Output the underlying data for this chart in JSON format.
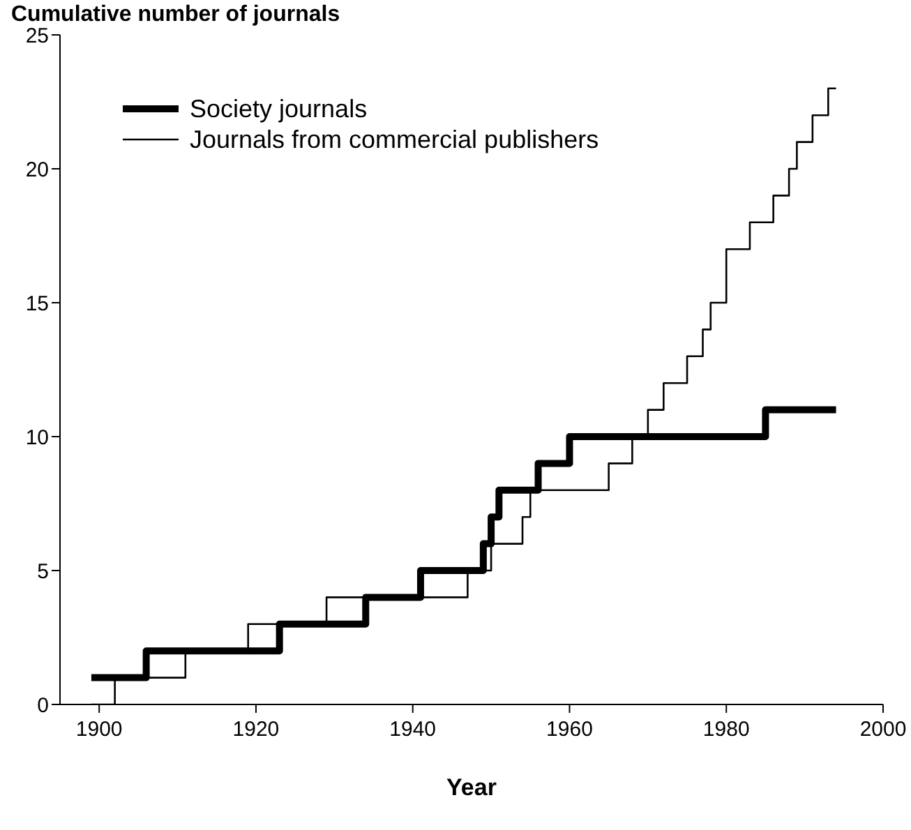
{
  "chart_data": {
    "type": "step",
    "title": "Cumulative number of journals",
    "xlabel": "Year",
    "xlim": [
      1895,
      2000
    ],
    "xticks": [
      1900,
      1920,
      1940,
      1960,
      1980,
      2000
    ],
    "ylim": [
      0,
      25
    ],
    "yticks": [
      0,
      5,
      10,
      15,
      20,
      25
    ],
    "grid": false,
    "legend": "top left",
    "marker": "none",
    "line_style": "solid",
    "series": [
      {
        "name": "Society journals",
        "color": "#000000",
        "x": [
          1899,
          1906,
          1923,
          1934,
          1941,
          1949,
          1950,
          1951,
          1956,
          1960,
          1985,
          1994
        ],
        "values": [
          1,
          2,
          3,
          4,
          5,
          6,
          7,
          8,
          9,
          10,
          11,
          11
        ]
      },
      {
        "name": "Journals from commercial  publishers",
        "color": "#000000",
        "x": [
          1899,
          1902,
          1911,
          1919,
          1929,
          1947,
          1950,
          1954,
          1955,
          1965,
          1968,
          1970,
          1972,
          1975,
          1977,
          1978,
          1980,
          1980,
          1983,
          1986,
          1988,
          1989,
          1991,
          1993,
          1994
        ],
        "values": [
          0,
          1,
          2,
          3,
          4,
          5,
          6,
          7,
          8,
          9,
          10,
          11,
          12,
          13,
          14,
          15,
          16,
          17,
          18,
          19,
          20,
          21,
          22,
          23,
          23
        ]
      }
    ]
  }
}
